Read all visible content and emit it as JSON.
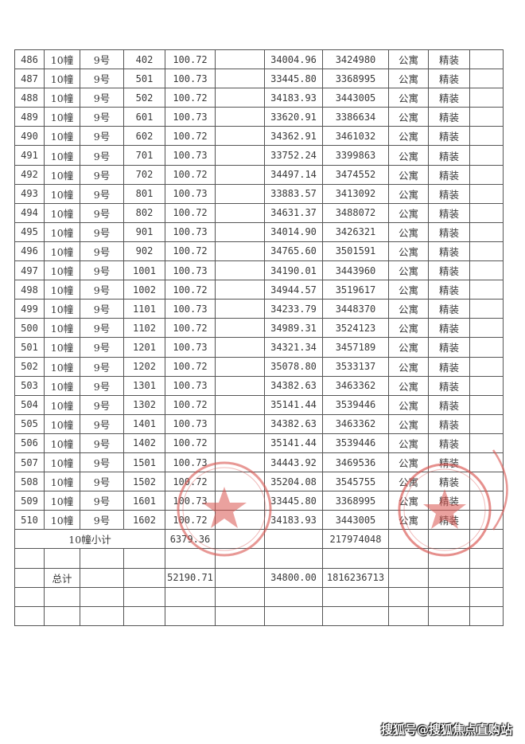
{
  "rows": [
    [
      "486",
      "10幢",
      "9号",
      "402",
      "100.72",
      "",
      "34004.96",
      "3424980",
      "公寓",
      "精装",
      ""
    ],
    [
      "487",
      "10幢",
      "9号",
      "501",
      "100.73",
      "",
      "33445.80",
      "3368995",
      "公寓",
      "精装",
      ""
    ],
    [
      "488",
      "10幢",
      "9号",
      "502",
      "100.72",
      "",
      "34183.93",
      "3443005",
      "公寓",
      "精装",
      ""
    ],
    [
      "489",
      "10幢",
      "9号",
      "601",
      "100.73",
      "",
      "33620.91",
      "3386634",
      "公寓",
      "精装",
      ""
    ],
    [
      "490",
      "10幢",
      "9号",
      "602",
      "100.72",
      "",
      "34362.91",
      "3461032",
      "公寓",
      "精装",
      ""
    ],
    [
      "491",
      "10幢",
      "9号",
      "701",
      "100.73",
      "",
      "33752.24",
      "3399863",
      "公寓",
      "精装",
      ""
    ],
    [
      "492",
      "10幢",
      "9号",
      "702",
      "100.72",
      "",
      "34497.14",
      "3474552",
      "公寓",
      "精装",
      ""
    ],
    [
      "493",
      "10幢",
      "9号",
      "801",
      "100.73",
      "",
      "33883.57",
      "3413092",
      "公寓",
      "精装",
      ""
    ],
    [
      "494",
      "10幢",
      "9号",
      "802",
      "100.72",
      "",
      "34631.37",
      "3488072",
      "公寓",
      "精装",
      ""
    ],
    [
      "495",
      "10幢",
      "9号",
      "901",
      "100.73",
      "",
      "34014.90",
      "3426321",
      "公寓",
      "精装",
      ""
    ],
    [
      "496",
      "10幢",
      "9号",
      "902",
      "100.72",
      "",
      "34765.60",
      "3501591",
      "公寓",
      "精装",
      ""
    ],
    [
      "497",
      "10幢",
      "9号",
      "1001",
      "100.73",
      "",
      "34190.01",
      "3443960",
      "公寓",
      "精装",
      ""
    ],
    [
      "498",
      "10幢",
      "9号",
      "1002",
      "100.72",
      "",
      "34944.57",
      "3519617",
      "公寓",
      "精装",
      ""
    ],
    [
      "499",
      "10幢",
      "9号",
      "1101",
      "100.73",
      "",
      "34233.79",
      "3448370",
      "公寓",
      "精装",
      ""
    ],
    [
      "500",
      "10幢",
      "9号",
      "1102",
      "100.72",
      "",
      "34989.31",
      "3524123",
      "公寓",
      "精装",
      ""
    ],
    [
      "501",
      "10幢",
      "9号",
      "1201",
      "100.73",
      "",
      "34321.34",
      "3457189",
      "公寓",
      "精装",
      ""
    ],
    [
      "502",
      "10幢",
      "9号",
      "1202",
      "100.72",
      "",
      "35078.80",
      "3533137",
      "公寓",
      "精装",
      ""
    ],
    [
      "503",
      "10幢",
      "9号",
      "1301",
      "100.73",
      "",
      "34382.63",
      "3463362",
      "公寓",
      "精装",
      ""
    ],
    [
      "504",
      "10幢",
      "9号",
      "1302",
      "100.72",
      "",
      "35141.44",
      "3539446",
      "公寓",
      "精装",
      ""
    ],
    [
      "505",
      "10幢",
      "9号",
      "1401",
      "100.73",
      "",
      "34382.63",
      "3463362",
      "公寓",
      "精装",
      ""
    ],
    [
      "506",
      "10幢",
      "9号",
      "1402",
      "100.72",
      "",
      "35141.44",
      "3539446",
      "公寓",
      "精装",
      ""
    ],
    [
      "507",
      "10幢",
      "9号",
      "1501",
      "100.73",
      "",
      "34443.92",
      "3469536",
      "公寓",
      "精装",
      ""
    ],
    [
      "508",
      "10幢",
      "9号",
      "1502",
      "100.72",
      "",
      "35204.08",
      "3545755",
      "公寓",
      "精装",
      ""
    ],
    [
      "509",
      "10幢",
      "9号",
      "1601",
      "100.73",
      "",
      "33445.80",
      "3368995",
      "公寓",
      "精装",
      ""
    ],
    [
      "510",
      "10幢",
      "9号",
      "1602",
      "100.72",
      "",
      "34183.93",
      "3443005",
      "公寓",
      "精装",
      ""
    ]
  ],
  "subtotal": {
    "label": "10幢小计",
    "area": "6379.36",
    "total": "217974048"
  },
  "grand_total": {
    "label": "总计",
    "area": "52190.71",
    "price": "34800.00",
    "total": "1816236713"
  },
  "stamp_color": "#d9534f",
  "watermark": "搜狐号@搜狐焦点直购站"
}
